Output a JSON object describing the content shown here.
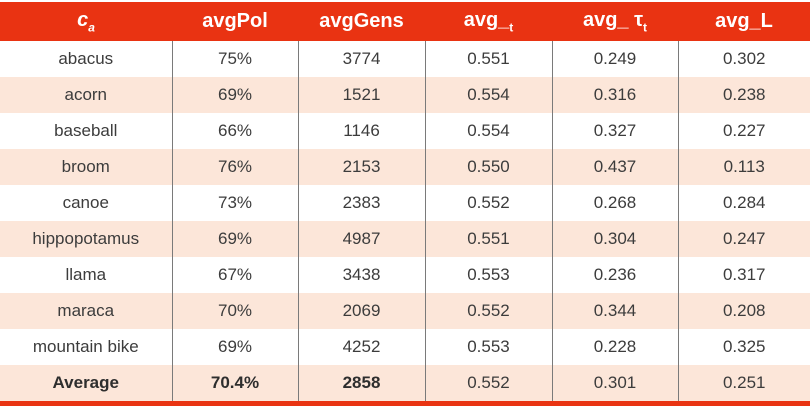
{
  "colors": {
    "header_bg": "#e93312",
    "header_text": "#ffffff",
    "row_alt_bg": "#fce6d9",
    "divider": "#7a7a7a",
    "text": "#3c3c3c"
  },
  "table": {
    "header": {
      "cols": [
        {
          "main": "c",
          "sub": "a"
        },
        {
          "main": "avgPol",
          "sub": ""
        },
        {
          "main": "avgGens",
          "sub": ""
        },
        {
          "main": "avg_",
          "sub": "t"
        },
        {
          "main": "avg_ τ",
          "sub": "t"
        },
        {
          "main": "avg_L",
          "sub": ""
        }
      ]
    },
    "rows": [
      {
        "cells": [
          "abacus",
          "75%",
          "3774",
          "0.551",
          "0.249",
          "0.302"
        ],
        "shaded": false,
        "bold_cells": []
      },
      {
        "cells": [
          "acorn",
          "69%",
          "1521",
          "0.554",
          "0.316",
          "0.238"
        ],
        "shaded": true,
        "bold_cells": []
      },
      {
        "cells": [
          "baseball",
          "66%",
          "1146",
          "0.554",
          "0.327",
          "0.227"
        ],
        "shaded": false,
        "bold_cells": []
      },
      {
        "cells": [
          "broom",
          "76%",
          "2153",
          "0.550",
          "0.437",
          "0.113"
        ],
        "shaded": true,
        "bold_cells": []
      },
      {
        "cells": [
          "canoe",
          "73%",
          "2383",
          "0.552",
          "0.268",
          "0.284"
        ],
        "shaded": false,
        "bold_cells": []
      },
      {
        "cells": [
          "hippopotamus",
          "69%",
          "4987",
          "0.551",
          "0.304",
          "0.247"
        ],
        "shaded": true,
        "bold_cells": []
      },
      {
        "cells": [
          "llama",
          "67%",
          "3438",
          "0.553",
          "0.236",
          "0.317"
        ],
        "shaded": false,
        "bold_cells": []
      },
      {
        "cells": [
          "maraca",
          "70%",
          "2069",
          "0.552",
          "0.344",
          "0.208"
        ],
        "shaded": true,
        "bold_cells": []
      },
      {
        "cells": [
          "mountain bike",
          "69%",
          "4252",
          "0.553",
          "0.228",
          "0.325"
        ],
        "shaded": false,
        "bold_cells": []
      },
      {
        "cells": [
          "Average",
          "70.4%",
          "2858",
          "0.552",
          "0.301",
          "0.251"
        ],
        "shaded": true,
        "bold_cells": [
          0,
          1,
          2
        ]
      }
    ]
  }
}
